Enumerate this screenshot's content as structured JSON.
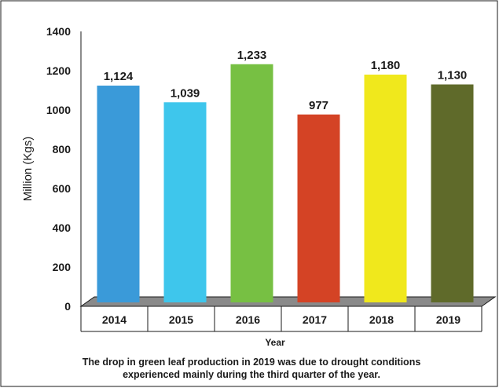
{
  "chart_data": {
    "type": "bar",
    "categories": [
      "2014",
      "2015",
      "2016",
      "2017",
      "2018",
      "2019"
    ],
    "values": [
      1124,
      1039,
      1233,
      977,
      1180,
      1130
    ],
    "data_labels": [
      "1,124",
      "1,039",
      "1,233",
      "977",
      "1,180",
      "1,130"
    ],
    "colors": [
      "#3a9ad9",
      "#3ec6ec",
      "#77c043",
      "#d44325",
      "#f0e81c",
      "#5f6a2a"
    ],
    "ylabel": "Million (Kgs)",
    "xlabel": "Year",
    "ylim": [
      0,
      1400
    ],
    "yticks": [
      0,
      200,
      400,
      600,
      800,
      1000,
      1200,
      1400
    ],
    "grid": false,
    "style": "3d-floor with category table"
  },
  "caption": {
    "line1": "The drop in green leaf production in 2019 was due to drought conditions",
    "line2": "experienced mainly during the third quarter of the year."
  }
}
